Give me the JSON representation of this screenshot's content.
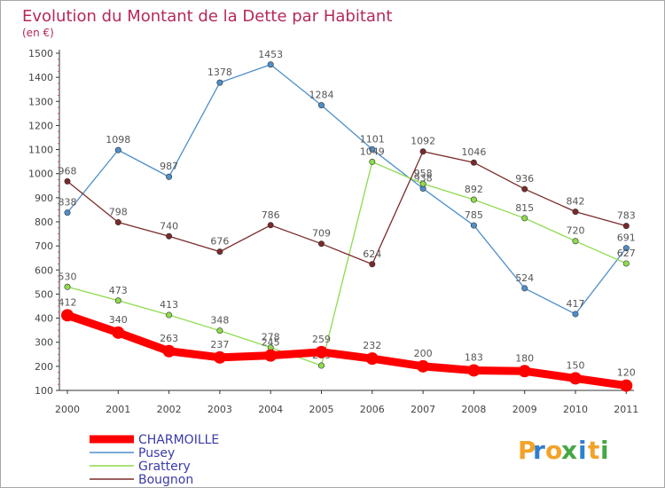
{
  "chart_data": {
    "type": "line",
    "title": "Evolution du Montant de la Dette par Habitant",
    "subtitle": "(en €)",
    "categories": [
      "2000",
      "2001",
      "2002",
      "2003",
      "2004",
      "2005",
      "2006",
      "2007",
      "2008",
      "2009",
      "2010",
      "2011"
    ],
    "ylim": [
      100,
      1500
    ],
    "yticks": [
      100,
      200,
      300,
      400,
      500,
      600,
      700,
      800,
      900,
      1000,
      1100,
      1200,
      1300,
      1400,
      1500
    ],
    "grid": false,
    "legend_position": "bottom-left",
    "series": [
      {
        "name": "CHARMOILLE",
        "color": "#ff0000",
        "values": [
          412,
          340,
          263,
          237,
          245,
          259,
          232,
          200,
          183,
          180,
          150,
          120
        ]
      },
      {
        "name": "Pusey",
        "color": "#4f8fcb",
        "values": [
          838,
          1098,
          987,
          1378,
          1453,
          1284,
          1101,
          938,
          785,
          524,
          417,
          691
        ]
      },
      {
        "name": "Grattery",
        "color": "#8edb4d",
        "values": [
          530,
          473,
          413,
          348,
          278,
          203,
          1049,
          958,
          892,
          815,
          720,
          627
        ]
      },
      {
        "name": "Bougnon",
        "color": "#7a2a2a",
        "values": [
          968,
          798,
          740,
          676,
          786,
          709,
          624,
          1092,
          1046,
          936,
          842,
          783
        ]
      }
    ]
  },
  "logo": {
    "letters": [
      "P",
      "r",
      "o",
      "x",
      "i",
      "t",
      "i"
    ],
    "colors": [
      "#f2a32a",
      "#2f7fd0",
      "#f2a32a",
      "#45a745",
      "#2f7fd0",
      "#f2a32a",
      "#45a745"
    ]
  }
}
